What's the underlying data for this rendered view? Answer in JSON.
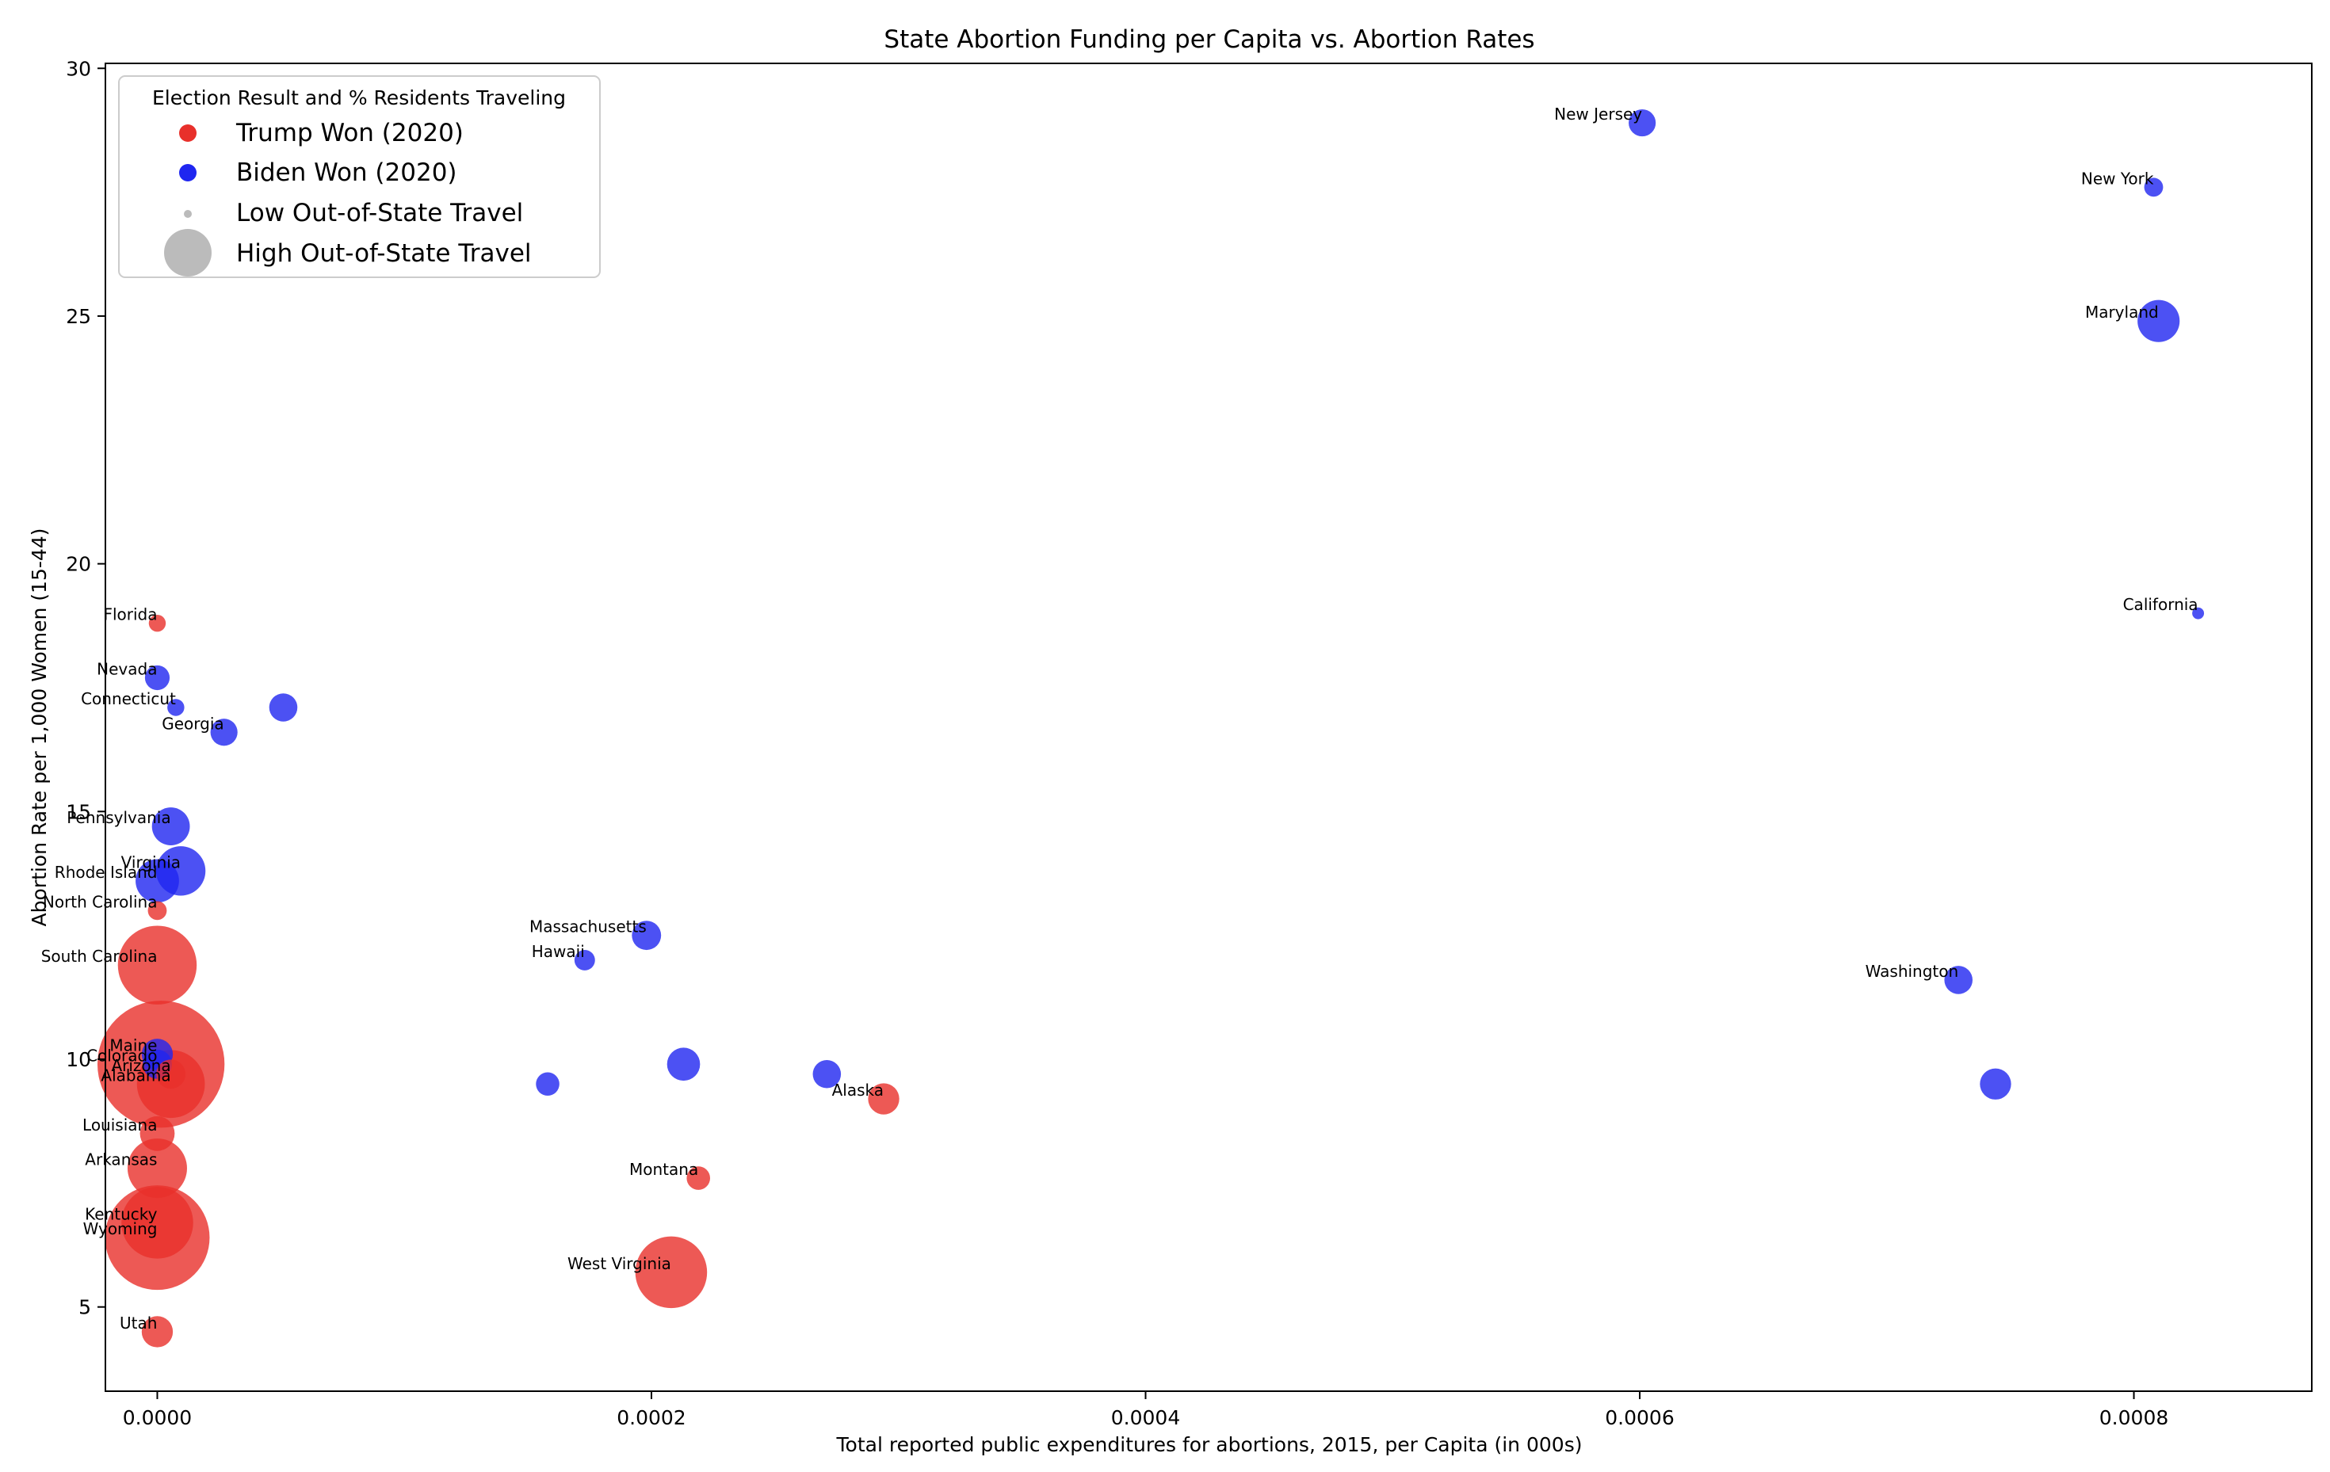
{
  "chart_data": {
    "type": "scatter",
    "title": "State Abortion Funding per Capita vs. Abortion Rates",
    "xlabel": "Total reported public expenditures for abortions, 2015, per Capita (in 000s)",
    "ylabel": "Abortion Rate per 1,000 Women (15-44)",
    "xlim": [
      -2.1e-05,
      0.000872
    ],
    "ylim": [
      3.3,
      30.1
    ],
    "x_ticks": [
      0.0,
      0.0002,
      0.0004,
      0.0006,
      0.0008
    ],
    "x_tick_labels": [
      "0.0000",
      "0.0002",
      "0.0004",
      "0.0006",
      "0.0008"
    ],
    "y_ticks": [
      5,
      10,
      15,
      20,
      25,
      30
    ],
    "y_tick_labels": [
      "5",
      "10",
      "15",
      "20",
      "25",
      "30"
    ],
    "grid": false,
    "colors": {
      "trump": "#e8302b",
      "biden": "#1f26f0",
      "size_legend": "#9e9e9e"
    },
    "legend": {
      "title": "Election Result and % Residents Traveling",
      "placement": "upper-left",
      "entries": [
        {
          "label": "Trump Won (2020)",
          "marker": "trump"
        },
        {
          "label": "Biden Won (2020)",
          "marker": "biden"
        },
        {
          "label": "Low Out-of-State Travel",
          "marker": "small"
        },
        {
          "label": "High Out-of-State Travel",
          "marker": "large"
        }
      ]
    },
    "points": [
      {
        "label": "New Jersey",
        "x": 0.000601,
        "y": 28.9,
        "party": "biden",
        "travel": 5
      },
      {
        "label": "New York",
        "x": 0.000808,
        "y": 27.6,
        "party": "biden",
        "travel": 2
      },
      {
        "label": "Maryland",
        "x": 0.00081,
        "y": 24.9,
        "party": "biden",
        "travel": 14
      },
      {
        "label": "California",
        "x": 0.000826,
        "y": 19.0,
        "party": "biden",
        "travel": 0.5
      },
      {
        "label": "Florida",
        "x": 0.0,
        "y": 18.8,
        "party": "trump",
        "travel": 1.5
      },
      {
        "label": "Nevada",
        "x": 0.0,
        "y": 17.7,
        "party": "biden",
        "travel": 4
      },
      {
        "label": "Connecticut",
        "x": 7.5e-06,
        "y": 17.1,
        "party": "biden",
        "travel": 1.5
      },
      {
        "label": "",
        "x": 5.1e-05,
        "y": 17.1,
        "party": "biden",
        "travel": 5.5
      },
      {
        "label": "Georgia",
        "x": 2.7e-05,
        "y": 16.6,
        "party": "biden",
        "travel": 5
      },
      {
        "label": "Pennsylvania",
        "x": 5.5e-06,
        "y": 14.7,
        "party": "biden",
        "travel": 11
      },
      {
        "label": "Virginia",
        "x": 9.5e-06,
        "y": 13.8,
        "party": "biden",
        "travel": 20
      },
      {
        "label": "Rhode Island",
        "x": 0.0,
        "y": 13.6,
        "party": "biden",
        "travel": 15
      },
      {
        "label": "North Carolina",
        "x": 0.0,
        "y": 13.0,
        "party": "trump",
        "travel": 2
      },
      {
        "label": "Massachusetts",
        "x": 0.000198,
        "y": 12.5,
        "party": "biden",
        "travel": 6
      },
      {
        "label": "Hawaii",
        "x": 0.000173,
        "y": 12.0,
        "party": "biden",
        "travel": 2.5
      },
      {
        "label": "South Carolina",
        "x": 0.0,
        "y": 11.9,
        "party": "trump",
        "travel": 55
      },
      {
        "label": "Washington",
        "x": 0.000729,
        "y": 11.6,
        "party": "biden",
        "travel": 5.5
      },
      {
        "label": "",
        "x": 1.5e-06,
        "y": 9.9,
        "party": "trump",
        "travel": 150
      },
      {
        "label": "Maine",
        "x": 0.0,
        "y": 10.1,
        "party": "biden",
        "travel": 7
      },
      {
        "label": "Colorado",
        "x": 0.0,
        "y": 9.9,
        "party": "biden",
        "travel": 6
      },
      {
        "label": "Arizona",
        "x": 5.5e-06,
        "y": 9.7,
        "party": "trump",
        "travel": 6
      },
      {
        "label": "Alabama",
        "x": 5.5e-06,
        "y": 9.5,
        "party": "trump",
        "travel": 40
      },
      {
        "label": "",
        "x": 0.000213,
        "y": 9.9,
        "party": "biden",
        "travel": 8
      },
      {
        "label": "",
        "x": 0.000271,
        "y": 9.7,
        "party": "biden",
        "travel": 5.5
      },
      {
        "label": "",
        "x": 0.000158,
        "y": 9.5,
        "party": "biden",
        "travel": 3.5
      },
      {
        "label": "",
        "x": 0.000744,
        "y": 9.5,
        "party": "biden",
        "travel": 7
      },
      {
        "label": "Alaska",
        "x": 0.000294,
        "y": 9.2,
        "party": "trump",
        "travel": 7
      },
      {
        "label": "Louisiana",
        "x": 0.0,
        "y": 8.5,
        "party": "trump",
        "travel": 9
      },
      {
        "label": "Arkansas",
        "x": 0.0,
        "y": 7.8,
        "party": "trump",
        "travel": 30
      },
      {
        "label": "Montana",
        "x": 0.000219,
        "y": 7.6,
        "party": "trump",
        "travel": 3.5
      },
      {
        "label": "Kentucky",
        "x": 0.0,
        "y": 6.7,
        "party": "trump",
        "travel": 45
      },
      {
        "label": "Wyoming",
        "x": 0.0,
        "y": 6.4,
        "party": "trump",
        "travel": 100
      },
      {
        "label": "West Virginia",
        "x": 0.000208,
        "y": 5.7,
        "party": "trump",
        "travel": 45
      },
      {
        "label": "Utah",
        "x": 0.0,
        "y": 4.5,
        "party": "trump",
        "travel": 7
      }
    ]
  }
}
